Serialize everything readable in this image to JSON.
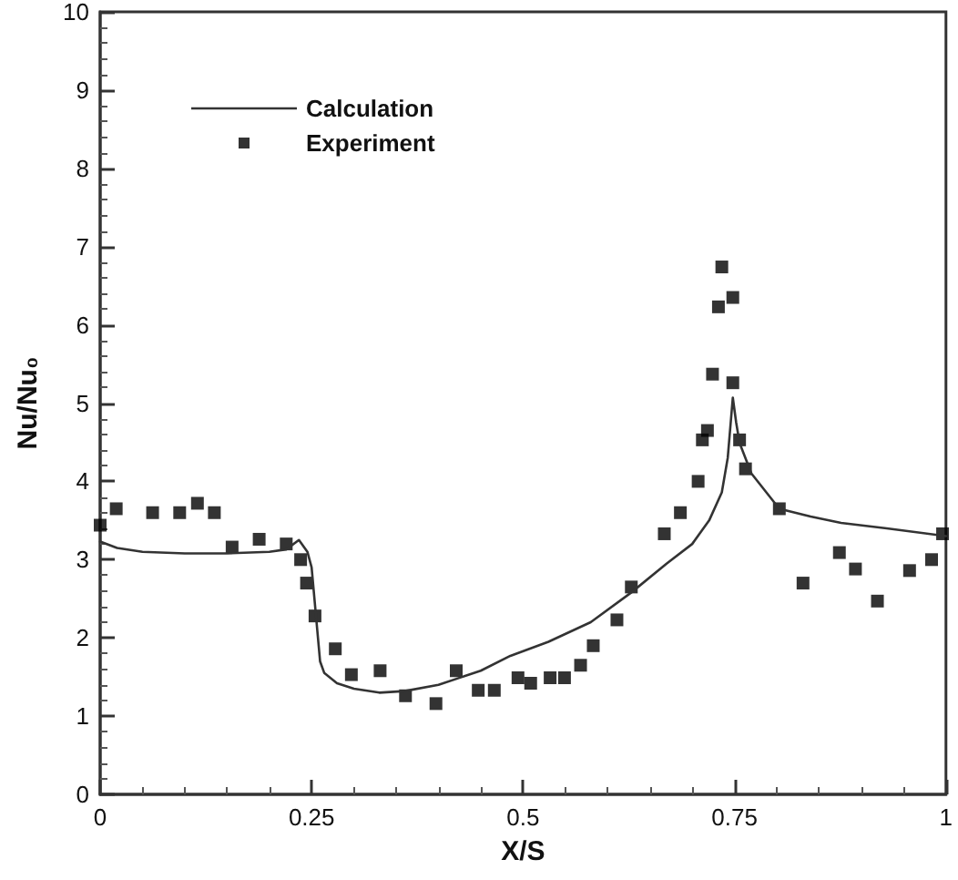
{
  "chart_data": {
    "type": "line",
    "xlabel": "X/S",
    "ylabel": "Nu/Nu₀",
    "xlim": [
      0,
      1
    ],
    "xticks": [
      0,
      0.25,
      0.5,
      0.75,
      1
    ],
    "ylim": [
      0,
      10
    ],
    "yticks": [
      0,
      1,
      2,
      3,
      4,
      5,
      6,
      7,
      8,
      9,
      10
    ],
    "grid": false,
    "legend": "top left",
    "series": [
      {
        "name": "Calculation",
        "type": "line",
        "color": "#333333",
        "marker": "none",
        "line_style": "solid",
        "x": [
          0,
          0.02,
          0.05,
          0.1,
          0.15,
          0.2,
          0.22,
          0.235,
          0.245,
          0.25,
          0.255,
          0.26,
          0.265,
          0.28,
          0.3,
          0.33,
          0.36,
          0.4,
          0.45,
          0.485,
          0.53,
          0.58,
          0.628,
          0.67,
          0.7,
          0.72,
          0.735,
          0.742,
          0.748,
          0.752,
          0.756,
          0.77,
          0.803,
          0.84,
          0.876,
          0.93,
          1
        ],
        "values": [
          3.23,
          3.15,
          3.1,
          3.08,
          3.08,
          3.1,
          3.13,
          3.25,
          3.1,
          2.9,
          2.3,
          1.7,
          1.55,
          1.42,
          1.35,
          1.3,
          1.32,
          1.4,
          1.58,
          1.77,
          1.95,
          2.2,
          2.58,
          2.95,
          3.2,
          3.5,
          3.86,
          4.3,
          5.07,
          4.75,
          4.49,
          4.1,
          3.65,
          3.55,
          3.47,
          3.4,
          3.3
        ]
      },
      {
        "name": "Experiment",
        "type": "scatter",
        "color": "#000000",
        "marker": "square",
        "x": [
          0,
          0.019,
          0.062,
          0.094,
          0.115,
          0.135,
          0.156,
          0.188,
          0.22,
          0.237,
          0.244,
          0.254,
          0.278,
          0.297,
          0.331,
          0.361,
          0.397,
          0.421,
          0.447,
          0.466,
          0.494,
          0.509,
          0.532,
          0.549,
          0.568,
          0.583,
          0.611,
          0.628,
          0.667,
          0.686,
          0.707,
          0.712,
          0.718,
          0.724,
          0.731,
          0.735,
          0.748,
          0.748,
          0.756,
          0.763,
          0.803,
          0.831,
          0.874,
          0.893,
          0.919,
          0.957,
          0.983,
          0.996
        ],
        "values": [
          3.44,
          3.65,
          3.6,
          3.6,
          3.72,
          3.6,
          3.16,
          3.26,
          3.2,
          3.0,
          2.7,
          2.28,
          1.86,
          1.53,
          1.58,
          1.26,
          1.16,
          1.58,
          1.33,
          1.33,
          1.49,
          1.42,
          1.49,
          1.49,
          1.65,
          1.9,
          2.23,
          2.65,
          3.33,
          3.6,
          4.0,
          4.53,
          4.65,
          5.37,
          6.23,
          6.74,
          6.35,
          5.26,
          4.53,
          4.16,
          3.65,
          2.7,
          3.09,
          2.88,
          2.47,
          2.86,
          3.0,
          3.33
        ]
      }
    ]
  }
}
